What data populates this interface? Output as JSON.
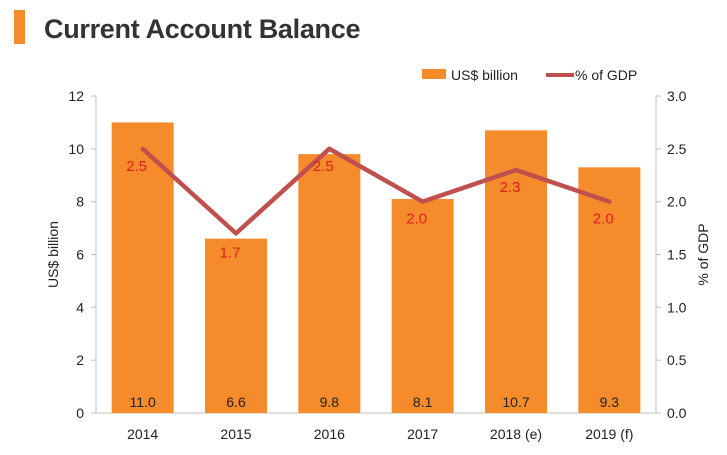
{
  "title": "Current Account Balance",
  "colors": {
    "accent": "#F68B2C",
    "bar": "#F68B2C",
    "line": "#C0504D",
    "line_label": "#E02020"
  },
  "chart_data": {
    "type": "bar",
    "title": "Current Account Balance",
    "categories": [
      "2014",
      "2015",
      "2016",
      "2017",
      "2018 (e)",
      "2019 (f)"
    ],
    "series": [
      {
        "name": "US$ billion",
        "type": "bar",
        "axis": "left",
        "values": [
          11.0,
          6.6,
          9.8,
          8.1,
          10.7,
          9.3
        ]
      },
      {
        "name": "% of GDP",
        "type": "line",
        "axis": "right",
        "values": [
          2.5,
          1.7,
          2.5,
          2.0,
          2.3,
          2.0
        ]
      }
    ],
    "bar_labels": [
      "11.0",
      "6.6",
      "9.8",
      "8.1",
      "10.7",
      "9.3"
    ],
    "line_labels": [
      "2.5",
      "1.7",
      "2.5",
      "2.0",
      "2.3",
      "2.0"
    ],
    "ylabel": "US$ billion",
    "y2label": "% of GDP",
    "ylim": [
      0,
      12
    ],
    "y2lim": [
      0,
      3.0
    ],
    "yticks": [
      "0",
      "2",
      "4",
      "6",
      "8",
      "10",
      "12"
    ],
    "y2ticks": [
      "0.0",
      "0.5",
      "1.0",
      "1.5",
      "2.0",
      "2.5",
      "3.0"
    ],
    "legend": [
      "US$ billion",
      "% of GDP"
    ],
    "legend_position": "top-right",
    "grid": false
  }
}
